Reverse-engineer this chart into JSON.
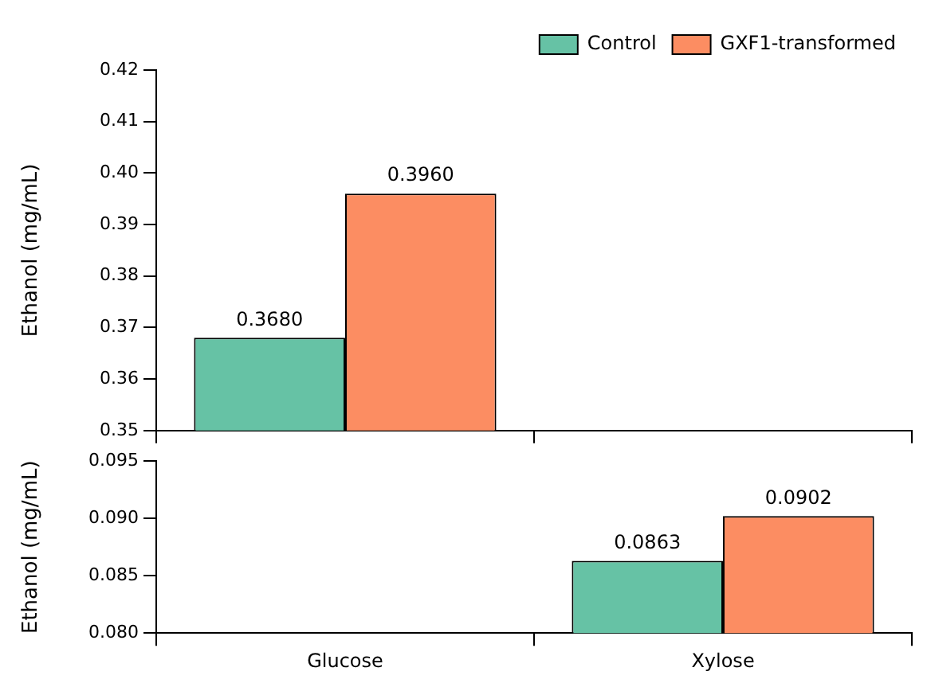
{
  "chart_data": [
    {
      "type": "bar",
      "ylabel": "Ethanol (mg/mL)",
      "categories": [
        null,
        null
      ],
      "ylim": [
        0.35,
        0.42
      ],
      "yticks": [
        {
          "value": 0.35,
          "label": "0.35"
        },
        {
          "value": 0.36,
          "label": "0.36"
        },
        {
          "value": 0.37,
          "label": "0.37"
        },
        {
          "value": 0.38,
          "label": "0.38"
        },
        {
          "value": 0.39,
          "label": "0.39"
        },
        {
          "value": 0.4,
          "label": "0.40"
        },
        {
          "value": 0.41,
          "label": "0.41"
        },
        {
          "value": 0.42,
          "label": "0.42"
        }
      ],
      "tick_labels": "y",
      "legend": "top right",
      "series": [
        {
          "name": "Control",
          "color": "#66c2a5",
          "values": [
            0.368,
            null
          ],
          "value_labels": [
            "0.3680",
            null
          ]
        },
        {
          "name": "GXF1-transformed",
          "color": "#fc8d62",
          "values": [
            0.396,
            null
          ],
          "value_labels": [
            "0.3960",
            null
          ]
        }
      ]
    },
    {
      "type": "bar",
      "ylabel": "Ethanol (mg/mL)",
      "categories": [
        "Glucose",
        "Xylose"
      ],
      "ylim": [
        0.08,
        0.095
      ],
      "yticks": [
        {
          "value": 0.08,
          "label": "0.080"
        },
        {
          "value": 0.085,
          "label": "0.085"
        },
        {
          "value": 0.09,
          "label": "0.090"
        },
        {
          "value": 0.095,
          "label": "0.095"
        }
      ],
      "series": [
        {
          "color": "#66c2a5",
          "values": [
            null,
            0.0863
          ],
          "value_labels": [
            null,
            "0.0863"
          ]
        },
        {
          "color": "#fc8d62",
          "values": [
            null,
            0.0902
          ],
          "value_labels": [
            null,
            "0.0902"
          ]
        }
      ]
    }
  ]
}
